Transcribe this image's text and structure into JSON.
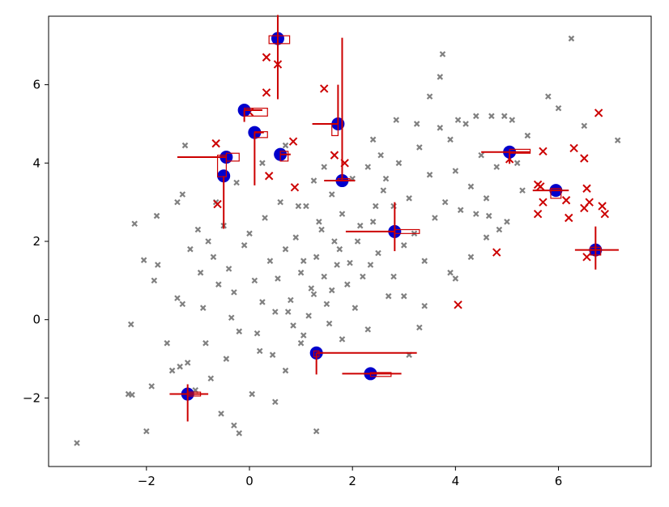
{
  "chart_data": {
    "type": "scatter",
    "title": "",
    "xlabel": "",
    "ylabel": "",
    "xlim": [
      -3.9,
      7.8
    ],
    "ylim": [
      -3.75,
      7.75
    ],
    "xticks": [
      -2,
      0,
      2,
      4,
      6
    ],
    "yticks": [
      -2,
      0,
      2,
      4,
      6
    ],
    "tick_labels_x": [
      "−2",
      "0",
      "2",
      "4",
      "6"
    ],
    "tick_labels_y": [
      "−2",
      "0",
      "2",
      "4",
      "6"
    ],
    "grid": false,
    "colors": {
      "background_points": "#808080",
      "centers": "#0000cc",
      "markers": "#cc0000",
      "error_bars": "#cc0000"
    },
    "series": [
      {
        "role": "background",
        "marker": "x",
        "points": [
          [
            -3.35,
            -3.15
          ],
          [
            -2.35,
            -1.9
          ],
          [
            -2.28,
            -1.92
          ],
          [
            -2.3,
            -0.12
          ],
          [
            -2.05,
            1.52
          ],
          [
            -2.23,
            2.45
          ],
          [
            -1.8,
            2.65
          ],
          [
            -1.85,
            1.0
          ],
          [
            -1.9,
            -1.7
          ],
          [
            -1.6,
            -0.6
          ],
          [
            -1.5,
            -1.3
          ],
          [
            -1.78,
            1.4
          ],
          [
            -1.4,
            0.55
          ],
          [
            -1.35,
            -1.2
          ],
          [
            -1.2,
            -1.1
          ],
          [
            -1.15,
            1.8
          ],
          [
            -1.0,
            2.3
          ],
          [
            -0.95,
            1.2
          ],
          [
            -0.9,
            0.3
          ],
          [
            -0.85,
            -0.6
          ],
          [
            -0.8,
            2.0
          ],
          [
            -0.7,
            1.6
          ],
          [
            -0.6,
            0.9
          ],
          [
            -0.5,
            2.4
          ],
          [
            -0.4,
            1.3
          ],
          [
            -0.3,
            0.7
          ],
          [
            -0.2,
            -0.3
          ],
          [
            -0.1,
            1.9
          ],
          [
            0.0,
            2.2
          ],
          [
            0.1,
            1.0
          ],
          [
            0.2,
            -0.8
          ],
          [
            0.3,
            2.6
          ],
          [
            0.4,
            1.5
          ],
          [
            0.5,
            0.2
          ],
          [
            0.6,
            3.0
          ],
          [
            0.7,
            1.8
          ],
          [
            0.8,
            0.5
          ],
          [
            0.9,
            2.1
          ],
          [
            1.0,
            1.2
          ],
          [
            1.1,
            2.9
          ],
          [
            1.2,
            0.8
          ],
          [
            1.3,
            1.6
          ],
          [
            1.4,
            2.3
          ],
          [
            1.5,
            0.4
          ],
          [
            1.6,
            3.2
          ],
          [
            1.7,
            1.4
          ],
          [
            1.8,
            2.7
          ],
          [
            1.9,
            0.9
          ],
          [
            2.0,
            3.6
          ],
          [
            2.1,
            2.0
          ],
          [
            2.2,
            1.1
          ],
          [
            2.3,
            3.9
          ],
          [
            2.4,
            2.5
          ],
          [
            2.5,
            1.7
          ],
          [
            2.6,
            3.3
          ],
          [
            2.7,
            0.6
          ],
          [
            2.8,
            2.9
          ],
          [
            2.9,
            4.0
          ],
          [
            3.0,
            1.9
          ],
          [
            3.1,
            3.1
          ],
          [
            3.2,
            2.2
          ],
          [
            3.3,
            4.4
          ],
          [
            3.4,
            1.5
          ],
          [
            3.5,
            3.7
          ],
          [
            3.6,
            2.6
          ],
          [
            3.7,
            4.9
          ],
          [
            3.8,
            3.0
          ],
          [
            3.9,
            1.2
          ],
          [
            4.0,
            3.8
          ],
          [
            4.1,
            2.8
          ],
          [
            4.2,
            5.0
          ],
          [
            4.3,
            3.4
          ],
          [
            4.4,
            2.7
          ],
          [
            4.5,
            4.2
          ],
          [
            4.6,
            3.1
          ],
          [
            4.7,
            5.2
          ],
          [
            4.8,
            3.9
          ],
          [
            5.0,
            2.5
          ],
          [
            5.2,
            4.0
          ],
          [
            5.4,
            4.7
          ],
          [
            5.8,
            5.7
          ],
          [
            6.0,
            5.4
          ],
          [
            6.25,
            7.18
          ],
          [
            6.5,
            4.95
          ],
          [
            7.15,
            4.58
          ],
          [
            3.75,
            6.78
          ],
          [
            3.7,
            6.2
          ],
          [
            3.5,
            5.7
          ],
          [
            4.05,
            5.1
          ],
          [
            3.9,
            4.6
          ],
          [
            1.3,
            -2.85
          ],
          [
            1.0,
            -0.6
          ],
          [
            0.7,
            -1.3
          ],
          [
            0.45,
            -0.9
          ],
          [
            -0.3,
            -2.7
          ],
          [
            -0.55,
            -2.4
          ],
          [
            -0.2,
            -2.9
          ],
          [
            0.05,
            -1.9
          ],
          [
            0.5,
            -2.1
          ],
          [
            -2.0,
            -2.85
          ],
          [
            -1.3,
            0.4
          ],
          [
            -0.65,
            3.0
          ],
          [
            -0.25,
            3.5
          ],
          [
            -1.3,
            3.2
          ],
          [
            -1.4,
            3.0
          ],
          [
            -1.25,
            4.45
          ],
          [
            0.25,
            4.0
          ],
          [
            0.7,
            4.45
          ],
          [
            1.8,
            -0.5
          ],
          [
            2.3,
            -0.25
          ],
          [
            2.8,
            1.1
          ],
          [
            3.0,
            0.6
          ],
          [
            3.3,
            -0.2
          ],
          [
            3.1,
            -0.9
          ],
          [
            4.0,
            1.05
          ],
          [
            3.4,
            0.35
          ],
          [
            1.15,
            0.1
          ],
          [
            1.55,
            -0.1
          ],
          [
            1.25,
            3.55
          ],
          [
            1.45,
            3.9
          ],
          [
            2.4,
            4.6
          ],
          [
            2.55,
            4.2
          ],
          [
            2.85,
            5.1
          ],
          [
            3.25,
            5.0
          ],
          [
            4.4,
            5.2
          ],
          [
            4.95,
            5.2
          ],
          [
            5.1,
            5.1
          ],
          [
            5.3,
            3.3
          ],
          [
            4.6,
            2.1
          ],
          [
            4.3,
            1.6
          ],
          [
            4.85,
            2.3
          ],
          [
            4.65,
            2.65
          ],
          [
            0.95,
            2.9
          ],
          [
            1.35,
            2.5
          ],
          [
            1.65,
            2.0
          ],
          [
            2.15,
            2.4
          ],
          [
            2.45,
            2.9
          ],
          [
            2.65,
            3.6
          ],
          [
            1.05,
            1.5
          ],
          [
            1.45,
            1.1
          ],
          [
            1.75,
            1.8
          ],
          [
            2.05,
            0.3
          ],
          [
            2.35,
            1.4
          ],
          [
            0.85,
            -0.15
          ],
          [
            -0.45,
            -1.0
          ],
          [
            -0.75,
            -1.5
          ],
          [
            -1.05,
            -1.8
          ],
          [
            -0.35,
            0.05
          ],
          [
            0.25,
            0.45
          ],
          [
            0.15,
            -0.35
          ],
          [
            0.55,
            1.05
          ],
          [
            0.75,
            0.2
          ],
          [
            1.05,
            -0.4
          ],
          [
            1.25,
            0.65
          ],
          [
            1.6,
            0.75
          ],
          [
            1.95,
            1.45
          ]
        ]
      },
      {
        "role": "local",
        "marker": "x",
        "points": [
          [
            0.55,
            6.52
          ],
          [
            0.33,
            6.7
          ],
          [
            0.33,
            5.8
          ],
          [
            1.45,
            5.9
          ],
          [
            0.0,
            5.3
          ],
          [
            -0.65,
            4.5
          ],
          [
            0.85,
            4.55
          ],
          [
            0.88,
            3.38
          ],
          [
            0.38,
            3.67
          ],
          [
            -0.62,
            2.95
          ],
          [
            1.65,
            4.2
          ],
          [
            1.85,
            4.0
          ],
          [
            5.7,
            4.3
          ],
          [
            5.05,
            4.1
          ],
          [
            6.3,
            4.38
          ],
          [
            6.5,
            4.12
          ],
          [
            5.6,
            3.45
          ],
          [
            5.65,
            3.4
          ],
          [
            5.7,
            3.0
          ],
          [
            6.15,
            3.05
          ],
          [
            6.55,
            3.35
          ],
          [
            6.6,
            3.0
          ],
          [
            6.85,
            2.9
          ],
          [
            6.9,
            2.7
          ],
          [
            6.5,
            2.85
          ],
          [
            5.6,
            2.7
          ],
          [
            6.2,
            2.6
          ],
          [
            6.78,
            5.28
          ],
          [
            6.55,
            1.6
          ],
          [
            4.8,
            1.72
          ],
          [
            4.05,
            0.38
          ]
        ]
      }
    ],
    "centers": [
      {
        "x": 0.55,
        "y": 7.18,
        "xerr": [
          0.0,
          0.0
        ],
        "yerr": [
          1.55,
          0.6
        ],
        "box": [
          0.38,
          7.05,
          0.78,
          7.25
        ]
      },
      {
        "x": -0.1,
        "y": 5.35,
        "xerr": [
          0.0,
          0.35
        ],
        "yerr": [
          0.3,
          0.0
        ],
        "box": [
          -0.1,
          5.2,
          0.35,
          5.4
        ]
      },
      {
        "x": 0.1,
        "y": 4.78,
        "xerr": [
          0.0,
          0.18
        ],
        "yerr": [
          1.35,
          0.0
        ],
        "box": [
          0.1,
          4.65,
          0.35,
          4.8
        ]
      },
      {
        "x": 1.72,
        "y": 5.0,
        "xerr": [
          0.5,
          0.0
        ],
        "yerr": [
          0.0,
          1.0
        ],
        "box": [
          1.6,
          4.7,
          1.72,
          5.0
        ]
      },
      {
        "x": -0.45,
        "y": 4.15,
        "xerr": [
          0.95,
          0.0
        ],
        "yerr": [
          0.0,
          0.0
        ],
        "box": [
          -0.45,
          4.05,
          -0.2,
          4.25
        ]
      },
      {
        "x": 0.6,
        "y": 4.22,
        "xerr": [
          0.0,
          0.2
        ],
        "yerr": [
          0.0,
          0.0
        ],
        "box": [
          0.6,
          4.05,
          0.75,
          4.3
        ]
      },
      {
        "x": -0.5,
        "y": 3.67,
        "xerr": [
          0.0,
          0.0
        ],
        "yerr": [
          1.35,
          0.0
        ],
        "box": [
          -0.62,
          3.65,
          -0.45,
          4.2
        ]
      },
      {
        "x": 1.8,
        "y": 3.55,
        "xerr": [
          0.35,
          0.25
        ],
        "yerr": [
          0.0,
          3.65
        ],
        "box": [
          1.72,
          3.55,
          1.95,
          3.6
        ]
      },
      {
        "x": 2.82,
        "y": 2.25,
        "xerr": [
          0.95,
          0.0
        ],
        "yerr": [
          0.5,
          0.75
        ],
        "box": [
          2.82,
          2.2,
          3.3,
          2.3
        ]
      },
      {
        "x": 5.05,
        "y": 4.28,
        "xerr": [
          0.55,
          0.4
        ],
        "yerr": [
          0.3,
          0.0
        ],
        "box": [
          5.05,
          4.25,
          5.45,
          4.35
        ]
      },
      {
        "x": 5.95,
        "y": 3.3,
        "xerr": [
          0.45,
          0.25
        ],
        "yerr": [
          0.0,
          0.0
        ],
        "box": [
          5.85,
          3.1,
          6.05,
          3.35
        ]
      },
      {
        "x": 6.72,
        "y": 1.78,
        "xerr": [
          0.4,
          0.45
        ],
        "yerr": [
          0.5,
          0.6
        ],
        "box": [
          6.62,
          1.65,
          6.82,
          1.85
        ]
      },
      {
        "x": 1.3,
        "y": -0.85,
        "xerr": [
          0.0,
          1.95
        ],
        "yerr": [
          0.55,
          0.0
        ],
        "box": [
          1.25,
          -0.95,
          1.35,
          -0.8
        ]
      },
      {
        "x": 2.35,
        "y": -1.38,
        "xerr": [
          0.55,
          0.6
        ],
        "yerr": [
          0.0,
          0.0
        ],
        "box": [
          2.35,
          -1.45,
          2.75,
          -1.35
        ]
      },
      {
        "x": -1.2,
        "y": -1.9,
        "xerr": [
          0.35,
          0.4
        ],
        "yerr": [
          0.7,
          0.25
        ],
        "box": [
          -1.2,
          -1.95,
          -0.95,
          -1.85
        ]
      }
    ]
  }
}
